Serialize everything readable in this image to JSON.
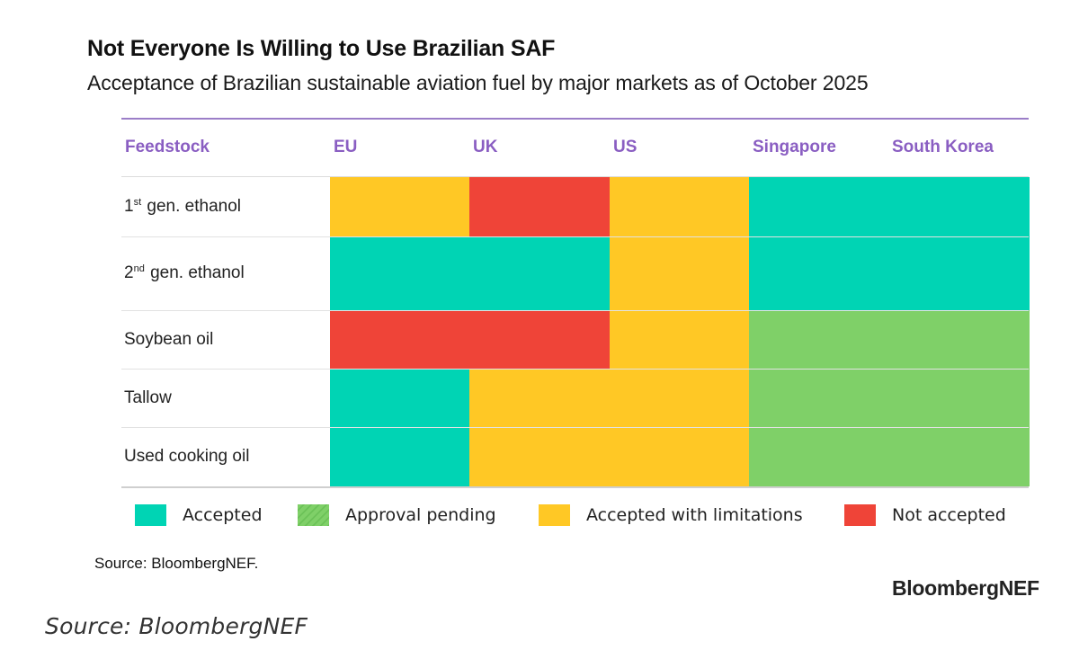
{
  "chart_data": {
    "type": "table",
    "title": "Not Everyone Is Willing to Use Brazilian SAF",
    "subtitle": "Acceptance of Brazilian sustainable aviation fuel by major markets as of October 2025",
    "header_label": "Feedstock",
    "markets": [
      "EU",
      "UK",
      "US",
      "Singapore",
      "South Korea"
    ],
    "rows": [
      {
        "ord": "1",
        "sup": "st",
        "rest": " gen. ethanol",
        "statuses": [
          "accepted_with_limitations",
          "not_accepted",
          "accepted_with_limitations",
          "accepted",
          "accepted"
        ]
      },
      {
        "ord": "2",
        "sup": "nd",
        "rest": " gen. ethanol",
        "statuses": [
          "accepted",
          "accepted",
          "accepted_with_limitations",
          "accepted",
          "accepted"
        ]
      },
      {
        "ord": "",
        "sup": "",
        "rest": "Soybean oil",
        "statuses": [
          "not_accepted",
          "not_accepted",
          "accepted_with_limitations",
          "approval_pending",
          "approval_pending"
        ]
      },
      {
        "ord": "",
        "sup": "",
        "rest": "Tallow",
        "statuses": [
          "accepted",
          "accepted_with_limitations",
          "accepted_with_limitations",
          "approval_pending",
          "approval_pending"
        ]
      },
      {
        "ord": "",
        "sup": "",
        "rest": "Used cooking oil",
        "statuses": [
          "accepted",
          "accepted_with_limitations",
          "accepted_with_limitations",
          "approval_pending",
          "approval_pending"
        ]
      }
    ],
    "legend": [
      {
        "key": "accepted",
        "label": "Accepted",
        "color": "#00d4b4"
      },
      {
        "key": "approval_pending",
        "label": "Approval pending",
        "color": "#7fd068"
      },
      {
        "key": "accepted_with_limitations",
        "label": "Accepted with limitations",
        "color": "#ffc825"
      },
      {
        "key": "not_accepted",
        "label": "Not accepted",
        "color": "#ef4438"
      }
    ],
    "source": "Source: BloombergNEF."
  },
  "brand": "BloombergNEF",
  "caption": "Source: BloombergNEF"
}
